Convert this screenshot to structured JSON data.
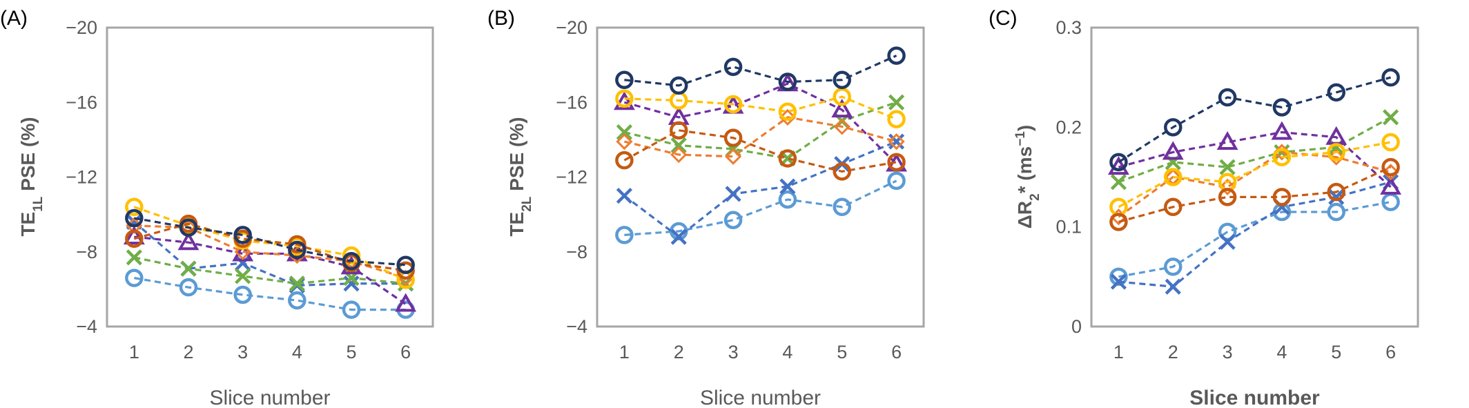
{
  "chart_data": [
    {
      "type": "line",
      "panel_label": "(A)",
      "xlabel": "Slice number",
      "xlabel_bold": false,
      "ylabel_parts": [
        {
          "text": "TE",
          "sub": false
        },
        {
          "text": "1L",
          "sub": true
        },
        {
          "text": " PSE (%)",
          "sub": false
        }
      ],
      "ylim": [
        -4,
        -20
      ],
      "y_ticks": [
        -20,
        -16,
        -12,
        -8,
        -4
      ],
      "y_tick_labels": [
        "−20",
        "−16",
        "−12",
        "−8",
        "−4"
      ],
      "categories": [
        "1",
        "2",
        "3",
        "4",
        "5",
        "6"
      ],
      "series": [
        {
          "color": "#5b9bd5",
          "marker": "circle",
          "values": [
            -6.6,
            -6.1,
            -5.7,
            -5.4,
            -4.9,
            -4.9
          ]
        },
        {
          "color": "#4472c4",
          "marker": "x",
          "values": [
            -9.6,
            -7.1,
            -7.4,
            -6.2,
            -6.3,
            -6.3
          ]
        },
        {
          "color": "#70ad47",
          "marker": "x",
          "values": [
            -7.7,
            -7.1,
            -6.7,
            -6.3,
            -6.6,
            -6.3
          ]
        },
        {
          "color": "#7030a0",
          "marker": "triangle",
          "values": [
            -8.8,
            -8.5,
            -7.9,
            -7.9,
            -7.2,
            -5.2
          ]
        },
        {
          "color": "#ed7d31",
          "marker": "diamond",
          "values": [
            -9.4,
            -9.3,
            -8.0,
            -7.8,
            -7.5,
            -6.6
          ]
        },
        {
          "color": "#ffc000",
          "marker": "circle",
          "values": [
            -10.4,
            -9.4,
            -8.6,
            -8.3,
            -7.8,
            -6.5
          ]
        },
        {
          "color": "#c55a11",
          "marker": "circle",
          "values": [
            -8.7,
            -9.5,
            -8.7,
            -8.4,
            -7.4,
            -7.0
          ]
        },
        {
          "color": "#203864",
          "marker": "circle",
          "values": [
            -9.8,
            -9.3,
            -8.9,
            -8.1,
            -7.5,
            -7.3
          ]
        }
      ]
    },
    {
      "type": "line",
      "panel_label": "(B)",
      "xlabel": "Slice number",
      "xlabel_bold": false,
      "ylabel_parts": [
        {
          "text": "TE",
          "sub": false
        },
        {
          "text": "2L",
          "sub": true
        },
        {
          "text": " PSE (%)",
          "sub": false
        }
      ],
      "ylim": [
        -4,
        -20
      ],
      "y_ticks": [
        -20,
        -16,
        -12,
        -8,
        -4
      ],
      "y_tick_labels": [
        "−20",
        "−16",
        "−12",
        "−8",
        "−4"
      ],
      "categories": [
        "1",
        "2",
        "3",
        "4",
        "5",
        "6"
      ],
      "series": [
        {
          "color": "#5b9bd5",
          "marker": "circle",
          "values": [
            -8.9,
            -9.1,
            -9.7,
            -10.8,
            -10.4,
            -11.8
          ]
        },
        {
          "color": "#4472c4",
          "marker": "x",
          "values": [
            -11.0,
            -8.8,
            -11.1,
            -11.5,
            -12.7,
            -13.9
          ]
        },
        {
          "color": "#70ad47",
          "marker": "x",
          "values": [
            -14.4,
            -13.7,
            -13.5,
            -13.0,
            -15.0,
            -16.0
          ]
        },
        {
          "color": "#7030a0",
          "marker": "triangle",
          "values": [
            -16.0,
            -15.2,
            -15.8,
            -17.0,
            -15.6,
            -12.7
          ]
        },
        {
          "color": "#ed7d31",
          "marker": "diamond",
          "values": [
            -13.9,
            -13.2,
            -13.1,
            -15.2,
            -14.7,
            -13.9
          ]
        },
        {
          "color": "#ffc000",
          "marker": "circle",
          "values": [
            -16.2,
            -16.1,
            -15.9,
            -15.5,
            -16.3,
            -15.1
          ]
        },
        {
          "color": "#c55a11",
          "marker": "circle",
          "values": [
            -12.9,
            -14.5,
            -14.1,
            -13.0,
            -12.3,
            -12.8
          ]
        },
        {
          "color": "#203864",
          "marker": "circle",
          "values": [
            -17.2,
            -16.9,
            -17.9,
            -17.1,
            -17.2,
            -18.5
          ]
        }
      ]
    },
    {
      "type": "line",
      "panel_label": "(C)",
      "xlabel": "Slice number",
      "xlabel_bold": true,
      "ylabel_parts": [
        {
          "text": "ΔR",
          "sub": false
        },
        {
          "text": "2",
          "sub": true
        },
        {
          "text": "* (ms",
          "sub": false
        },
        {
          "text": "−1",
          "sup": true
        },
        {
          "text": ")",
          "sub": false
        }
      ],
      "ylim": [
        0,
        0.3
      ],
      "y_ticks": [
        0,
        0.1,
        0.2,
        0.3
      ],
      "y_tick_labels": [
        "0",
        "0.1",
        "0.2",
        "0.3"
      ],
      "categories": [
        "1",
        "2",
        "3",
        "4",
        "5",
        "6"
      ],
      "series": [
        {
          "color": "#5b9bd5",
          "marker": "circle",
          "values": [
            0.05,
            0.06,
            0.095,
            0.115,
            0.115,
            0.125
          ]
        },
        {
          "color": "#4472c4",
          "marker": "x",
          "values": [
            0.045,
            0.04,
            0.085,
            0.12,
            0.13,
            0.145
          ]
        },
        {
          "color": "#70ad47",
          "marker": "x",
          "values": [
            0.145,
            0.165,
            0.16,
            0.175,
            0.18,
            0.21
          ]
        },
        {
          "color": "#7030a0",
          "marker": "triangle",
          "values": [
            0.16,
            0.175,
            0.185,
            0.195,
            0.19,
            0.14
          ]
        },
        {
          "color": "#ed7d31",
          "marker": "diamond",
          "values": [
            0.11,
            0.15,
            0.14,
            0.175,
            0.17,
            0.155
          ]
        },
        {
          "color": "#ffc000",
          "marker": "circle",
          "values": [
            0.12,
            0.15,
            0.145,
            0.17,
            0.175,
            0.185
          ]
        },
        {
          "color": "#c55a11",
          "marker": "circle",
          "values": [
            0.105,
            0.12,
            0.13,
            0.13,
            0.135,
            0.16
          ]
        },
        {
          "color": "#203864",
          "marker": "circle",
          "values": [
            0.165,
            0.2,
            0.23,
            0.22,
            0.235,
            0.25
          ]
        }
      ]
    }
  ]
}
